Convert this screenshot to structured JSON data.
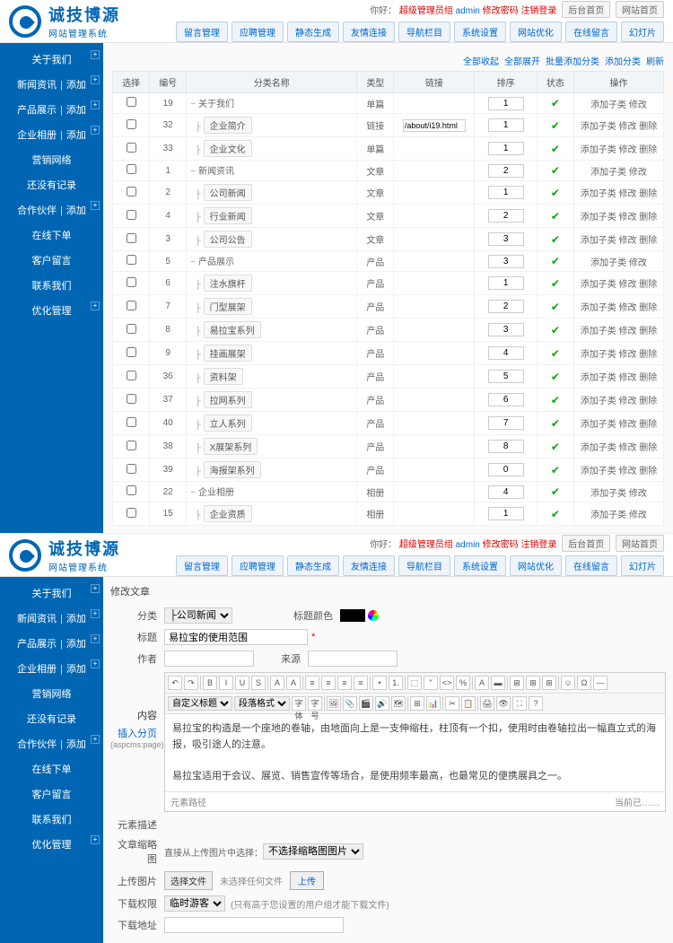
{
  "brand": {
    "title": "诚技博源",
    "subtitle": "网站管理系统"
  },
  "userbar": {
    "prefix": "你好：",
    "role": "超级管理员组",
    "user": "admin",
    "change_pwd": "修改密码",
    "logout": "注销登录",
    "btn1": "后台首页",
    "btn2": "网站首页"
  },
  "topTabs": [
    "留言管理",
    "应聘管理",
    "静态生成",
    "友情连接",
    "导航栏目",
    "系统设置",
    "网站优化",
    "在线留言",
    "幻灯片"
  ],
  "sidebar": [
    {
      "label": "关于我们",
      "plus": true
    },
    {
      "label": "新闻资讯",
      "add": "添加",
      "plus": true
    },
    {
      "label": "产品展示",
      "add": "添加",
      "plus": true
    },
    {
      "label": "企业相册",
      "add": "添加",
      "plus": true
    },
    {
      "label": "营销网络"
    },
    {
      "label": "还没有记录"
    },
    {
      "label": "合作伙伴",
      "add": "添加",
      "plus": true
    },
    {
      "label": "在线下单"
    },
    {
      "label": "客户留言"
    },
    {
      "label": "联系我们"
    },
    {
      "label": "优化管理",
      "plus": true
    }
  ],
  "tableToolbar": [
    "全部收起",
    "全部展开",
    "批量添加分类",
    "添加分类",
    "刷新"
  ],
  "tableHead": {
    "sel": "选择",
    "id": "编号",
    "name": "分类名称",
    "type": "类型",
    "link": "链接",
    "sort": "排序",
    "status": "状态",
    "ops": "操作"
  },
  "rows": [
    {
      "id": 19,
      "depth": 0,
      "name": "关于我们",
      "tag": false,
      "type": "单篇",
      "link": "",
      "sort": 1,
      "ops": "添加子类 修改"
    },
    {
      "id": 32,
      "depth": 1,
      "name": "企业简介",
      "tag": true,
      "type": "链接",
      "link": "/about/i19.html",
      "sort": 1,
      "ops": "添加子类 修改 删除"
    },
    {
      "id": 33,
      "depth": 1,
      "name": "企业文化",
      "tag": true,
      "type": "单篇",
      "link": "",
      "sort": 1,
      "ops": "添加子类 修改 删除"
    },
    {
      "id": 1,
      "depth": 0,
      "name": "新闻资讯",
      "tag": false,
      "type": "文章",
      "link": "",
      "sort": 2,
      "ops": "添加子类 修改"
    },
    {
      "id": 2,
      "depth": 1,
      "name": "公司新闻",
      "tag": true,
      "type": "文章",
      "link": "",
      "sort": 1,
      "ops": "添加子类 修改 删除"
    },
    {
      "id": 4,
      "depth": 1,
      "name": "行业新闻",
      "tag": true,
      "type": "文章",
      "link": "",
      "sort": 2,
      "ops": "添加子类 修改 删除"
    },
    {
      "id": 3,
      "depth": 1,
      "name": "公司公告",
      "tag": true,
      "type": "文章",
      "link": "",
      "sort": 3,
      "ops": "添加子类 修改 删除"
    },
    {
      "id": 5,
      "depth": 0,
      "name": "产品展示",
      "tag": false,
      "type": "产品",
      "link": "",
      "sort": 3,
      "ops": "添加子类 修改"
    },
    {
      "id": 6,
      "depth": 1,
      "name": "注水旗杆",
      "tag": true,
      "type": "产品",
      "link": "",
      "sort": 1,
      "ops": "添加子类 修改 删除"
    },
    {
      "id": 7,
      "depth": 1,
      "name": "门型展架",
      "tag": true,
      "type": "产品",
      "link": "",
      "sort": 2,
      "ops": "添加子类 修改 删除"
    },
    {
      "id": 8,
      "depth": 1,
      "name": "易拉宝系列",
      "tag": true,
      "type": "产品",
      "link": "",
      "sort": 3,
      "ops": "添加子类 修改 删除"
    },
    {
      "id": 9,
      "depth": 1,
      "name": "挂画展架",
      "tag": true,
      "type": "产品",
      "link": "",
      "sort": 4,
      "ops": "添加子类 修改 删除"
    },
    {
      "id": 36,
      "depth": 1,
      "name": "资料架",
      "tag": true,
      "type": "产品",
      "link": "",
      "sort": 5,
      "ops": "添加子类 修改 删除"
    },
    {
      "id": 37,
      "depth": 1,
      "name": "拉网系列",
      "tag": true,
      "type": "产品",
      "link": "",
      "sort": 6,
      "ops": "添加子类 修改 删除"
    },
    {
      "id": 40,
      "depth": 1,
      "name": "立人系列",
      "tag": true,
      "type": "产品",
      "link": "",
      "sort": 7,
      "ops": "添加子类 修改 删除"
    },
    {
      "id": 38,
      "depth": 1,
      "name": "X展架系列",
      "tag": true,
      "type": "产品",
      "link": "",
      "sort": 8,
      "ops": "添加子类 修改 删除"
    },
    {
      "id": 39,
      "depth": 1,
      "name": "海报架系列",
      "tag": true,
      "type": "产品",
      "link": "",
      "sort": 0,
      "ops": "添加子类 修改 删除"
    },
    {
      "id": 22,
      "depth": 0,
      "name": "企业相册",
      "tag": false,
      "type": "相册",
      "link": "",
      "sort": 4,
      "ops": "添加子类 修改"
    },
    {
      "id": 15,
      "depth": 1,
      "name": "企业资质",
      "tag": true,
      "type": "相册",
      "link": "",
      "sort": 1,
      "ops": "添加子类 修改"
    }
  ],
  "form": {
    "heading": "修改文章",
    "labels": {
      "cat": "分类",
      "title": "标题",
      "titleColor": "标题颜色",
      "author": "作者",
      "source": "来源",
      "content": "内容",
      "insertPage": "插入分页",
      "aspcms": "(aspcms:page)",
      "metaDesc": "元素描述",
      "thumb": "文章缩略图",
      "thumbNote": "直接从上传图片中选择：",
      "upload": "上传图片",
      "download": "下载权限",
      "downloadNote": "(只有高于您设置的用户组才能下载文件)",
      "downloadUrl": "下载地址"
    },
    "catOption": "├公司新闻",
    "titleVal": "易拉宝的使用范围",
    "thumbSelect": "不选择缩略图图片",
    "fileBtn": "选择文件",
    "fileNone": "未选择任何文件",
    "uploadBtn": "上传",
    "dlOption": "临时游客",
    "editor": {
      "p1": "易拉宝的构造是一个座地的卷轴，由地面向上是一支伸缩柱，柱顶有一个扣，使用时由卷轴拉出一幅直立式的海报，吸引途人的注意。",
      "p2": "易拉宝适用于会议、展览、销售宣传等场合，是使用频率最高，也最常见的便携展具之一。",
      "footer_l": "元素路径",
      "footer_r": "当前已……"
    }
  }
}
